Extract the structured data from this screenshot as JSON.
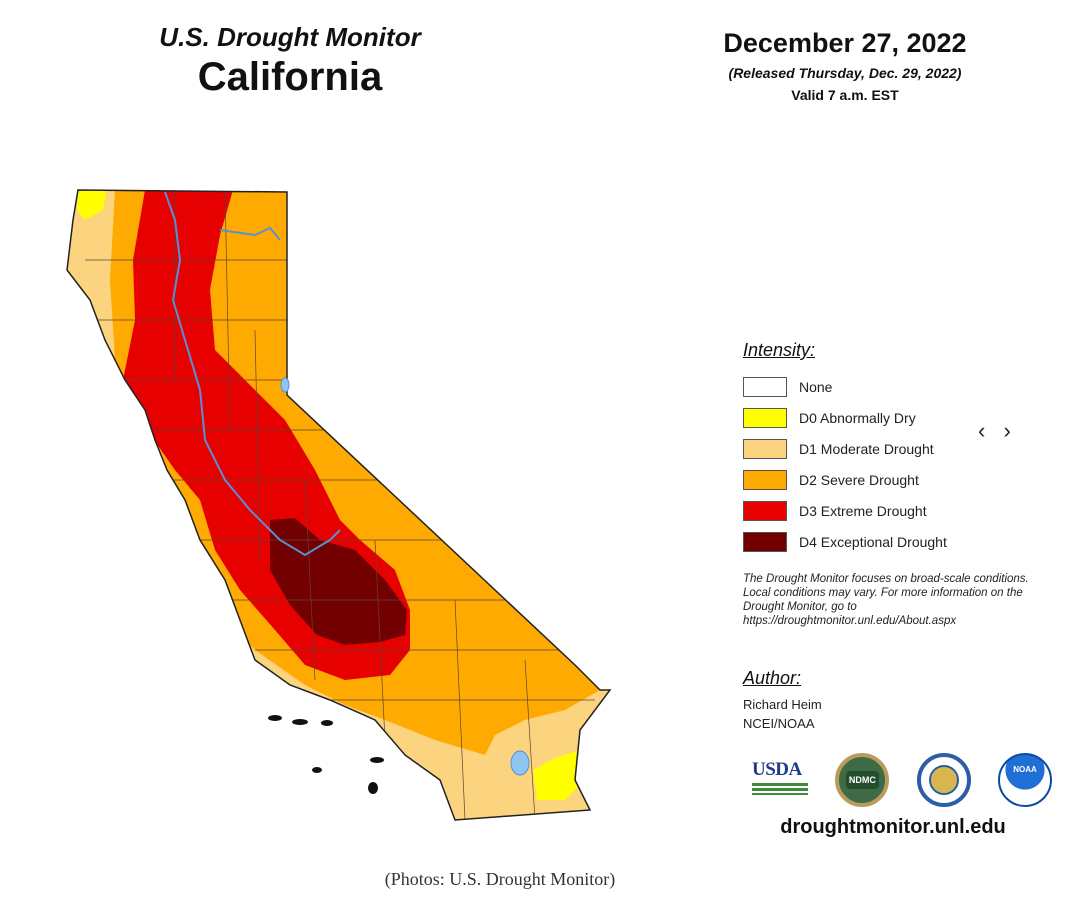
{
  "header": {
    "subtitle": "U.S. Drought Monitor",
    "title": "California",
    "date": "December 27, 2022",
    "released": "(Released Thursday, Dec. 29, 2022)",
    "valid": "Valid 7 a.m. EST"
  },
  "legend": {
    "heading": "Intensity:",
    "items": [
      {
        "label": "None",
        "color": "#ffffff"
      },
      {
        "label": "D0 Abnormally Dry",
        "color": "#ffff00"
      },
      {
        "label": "D1 Moderate Drought",
        "color": "#fcd37f"
      },
      {
        "label": "D2 Severe Drought",
        "color": "#ffaa00"
      },
      {
        "label": "D3 Extreme Drought",
        "color": "#e60000"
      },
      {
        "label": "D4 Exceptional Drought",
        "color": "#730000"
      }
    ]
  },
  "nav": {
    "arrows": "‹ ›"
  },
  "note": "The Drought Monitor focuses on broad-scale conditions. Local conditions may vary. For more information on the Drought Monitor, go to https://droughtmonitor.unl.edu/About.aspx",
  "author": {
    "heading": "Author:",
    "name": "Richard Heim",
    "org": "NCEI/NOAA"
  },
  "logos": {
    "usda": "USDA",
    "ndmc": "NDMC",
    "noaa": "NOAA",
    "icons": [
      "usda-logo",
      "ndmc-logo",
      "commerce-seal",
      "noaa-logo"
    ]
  },
  "website": "droughtmonitor.unl.edu",
  "caption": "(Photos: U.S. Drought Monitor)"
}
